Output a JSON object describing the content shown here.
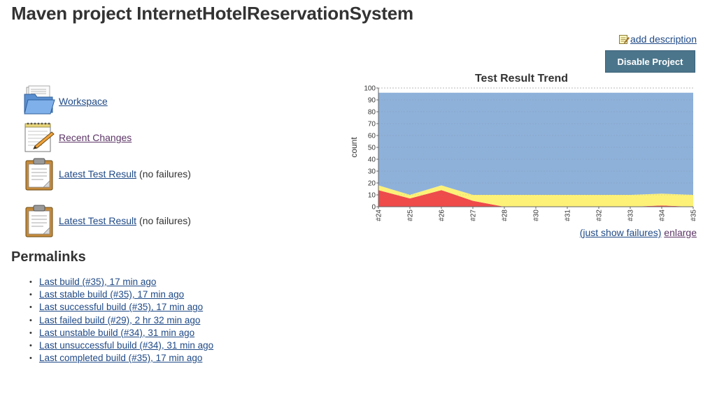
{
  "header": {
    "title": "Maven project InternetHotelReservationSystem"
  },
  "actions": {
    "add_description": "add description",
    "disable_project": "Disable Project"
  },
  "tasks": {
    "workspace": "Workspace",
    "recent_changes": "Recent Changes",
    "latest_test_result_1": "Latest Test Result",
    "latest_test_result_1_note": "(no failures)",
    "latest_test_result_2": "Latest Test Result",
    "latest_test_result_2_note": "(no failures)"
  },
  "icons": {
    "workspace": "folder-icon",
    "recent_changes": "notepad-icon",
    "test_result": "clipboard-icon",
    "add_description": "note-edit-icon"
  },
  "permalinks": {
    "title": "Permalinks",
    "items": [
      "Last build (#35), 17 min ago",
      "Last stable build (#35), 17 min ago",
      "Last successful build (#35), 17 min ago",
      "Last failed build (#29), 2 hr 32 min ago",
      "Last unstable build (#34), 31 min ago",
      "Last unsuccessful build (#34), 31 min ago",
      "Last completed build (#35), 17 min ago"
    ]
  },
  "chart_links": {
    "just_show_failures": "(just show failures)",
    "enlarge": "enlarge"
  },
  "colors": {
    "link": "#204A87",
    "button_bg": "#4b758b",
    "chart_total": "#8eb1da",
    "chart_skipped": "#fdf178",
    "chart_failed": "#ef4b4b"
  },
  "chart_data": {
    "type": "area",
    "title": "Test Result Trend",
    "ylabel": "count",
    "xlabel": "",
    "categories": [
      "#24",
      "#25",
      "#26",
      "#27",
      "#28",
      "#30",
      "#31",
      "#32",
      "#33",
      "#34",
      "#35"
    ],
    "ylim": [
      0,
      100
    ],
    "yticks": [
      0,
      10,
      20,
      30,
      40,
      50,
      60,
      70,
      80,
      90,
      100
    ],
    "grid": true,
    "stacked": true,
    "series": [
      {
        "color": "#ef4b4b",
        "values": [
          14,
          7,
          14,
          5,
          0,
          0,
          0,
          0,
          0,
          1,
          0
        ]
      },
      {
        "color": "#fdf178",
        "values": [
          4,
          3,
          4,
          5,
          10,
          10,
          10,
          10,
          10,
          10,
          10
        ]
      },
      {
        "color": "#8eb1da",
        "values": [
          78,
          86,
          78,
          86,
          86,
          86,
          86,
          86,
          86,
          85,
          86
        ]
      }
    ]
  }
}
